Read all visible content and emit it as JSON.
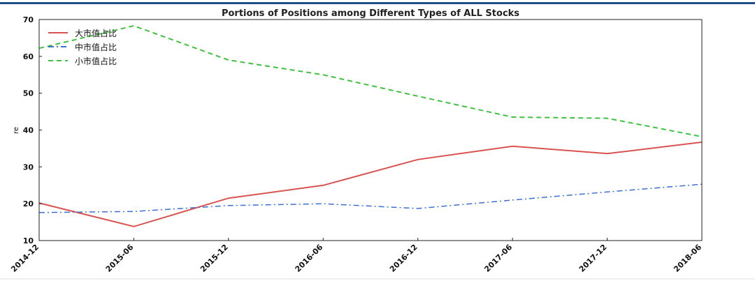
{
  "chart_data": {
    "type": "line",
    "title": "Portions of Positions among Different Types of ALL Stocks",
    "xlabel": "",
    "ylabel": "re",
    "categories": [
      "2014-12",
      "2015-06",
      "2015-12",
      "2016-06",
      "2016-12",
      "2017-06",
      "2017-12",
      "2018-06"
    ],
    "ylim": [
      10,
      70
    ],
    "yticks": [
      10,
      20,
      30,
      40,
      50,
      60,
      70
    ],
    "grid": false,
    "legend_position": "top-left",
    "series": [
      {
        "name": "大市值占比",
        "values": [
          20.2,
          13.8,
          21.5,
          25.0,
          32.0,
          35.6,
          33.6,
          36.7
        ],
        "color": "#d9534f",
        "style": "solid"
      },
      {
        "name": "中市值占比",
        "values": [
          17.6,
          17.9,
          19.5,
          20.0,
          18.7,
          21.0,
          23.2,
          25.3
        ],
        "color": "#3b6fd4",
        "style": "dashdot"
      },
      {
        "name": "小市值占比",
        "values": [
          62.2,
          68.3,
          59.0,
          55.0,
          49.2,
          43.5,
          43.2,
          38.2
        ],
        "color": "#3ec23e",
        "style": "dashed"
      }
    ]
  }
}
